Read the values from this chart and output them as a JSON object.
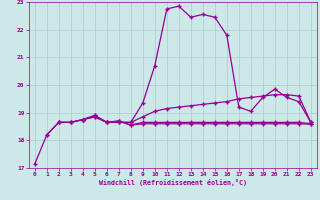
{
  "xlabel": "Windchill (Refroidissement éolien,°C)",
  "bg_color": "#cce8e8",
  "grid_color": "#aacccc",
  "line_color": "#990099",
  "xlim": [
    -0.5,
    23.5
  ],
  "ylim": [
    17,
    23
  ],
  "yticks": [
    17,
    18,
    19,
    20,
    21,
    22,
    23
  ],
  "xticks": [
    0,
    1,
    2,
    3,
    4,
    5,
    6,
    7,
    8,
    9,
    10,
    11,
    12,
    13,
    14,
    15,
    16,
    17,
    18,
    19,
    20,
    21,
    22,
    23
  ],
  "line1_x": [
    0,
    1,
    2,
    3,
    4,
    5,
    6,
    7,
    8,
    9,
    10,
    11,
    12,
    13,
    14,
    15,
    16,
    17,
    18,
    19,
    20,
    21,
    22,
    23
  ],
  "line1_y": [
    17.15,
    18.2,
    18.65,
    18.65,
    18.75,
    18.9,
    18.65,
    18.65,
    18.65,
    19.35,
    20.7,
    22.75,
    22.85,
    22.45,
    22.55,
    22.45,
    21.8,
    19.2,
    19.05,
    19.55,
    19.85,
    19.55,
    19.4,
    18.65
  ],
  "line2_x": [
    1,
    2,
    3,
    4,
    5,
    6,
    7,
    8,
    9,
    10,
    11,
    12,
    13,
    14,
    15,
    16,
    17,
    18,
    19,
    20,
    21,
    22,
    23
  ],
  "line2_y": [
    18.2,
    18.65,
    18.65,
    18.75,
    18.85,
    18.65,
    18.65,
    18.65,
    18.85,
    19.05,
    19.15,
    19.2,
    19.25,
    19.3,
    19.35,
    19.4,
    19.5,
    19.55,
    19.6,
    19.65,
    19.65,
    19.6,
    18.65
  ],
  "line3_x": [
    2,
    3,
    4,
    5,
    6,
    7,
    8,
    9,
    10,
    11,
    12,
    13,
    14,
    15,
    16,
    17,
    18,
    19,
    20,
    21,
    22,
    23
  ],
  "line3_y": [
    18.65,
    18.65,
    18.75,
    18.9,
    18.65,
    18.7,
    18.55,
    18.65,
    18.65,
    18.65,
    18.65,
    18.65,
    18.65,
    18.65,
    18.65,
    18.65,
    18.65,
    18.65,
    18.65,
    18.65,
    18.65,
    18.6
  ],
  "line4_x": [
    4,
    5,
    6,
    7,
    8,
    9,
    10,
    11,
    12,
    13,
    14,
    15,
    16,
    17,
    18,
    19,
    20,
    21,
    22,
    23
  ],
  "line4_y": [
    18.75,
    18.85,
    18.65,
    18.7,
    18.55,
    18.6,
    18.6,
    18.6,
    18.6,
    18.6,
    18.6,
    18.6,
    18.6,
    18.6,
    18.6,
    18.6,
    18.6,
    18.6,
    18.6,
    18.58
  ]
}
